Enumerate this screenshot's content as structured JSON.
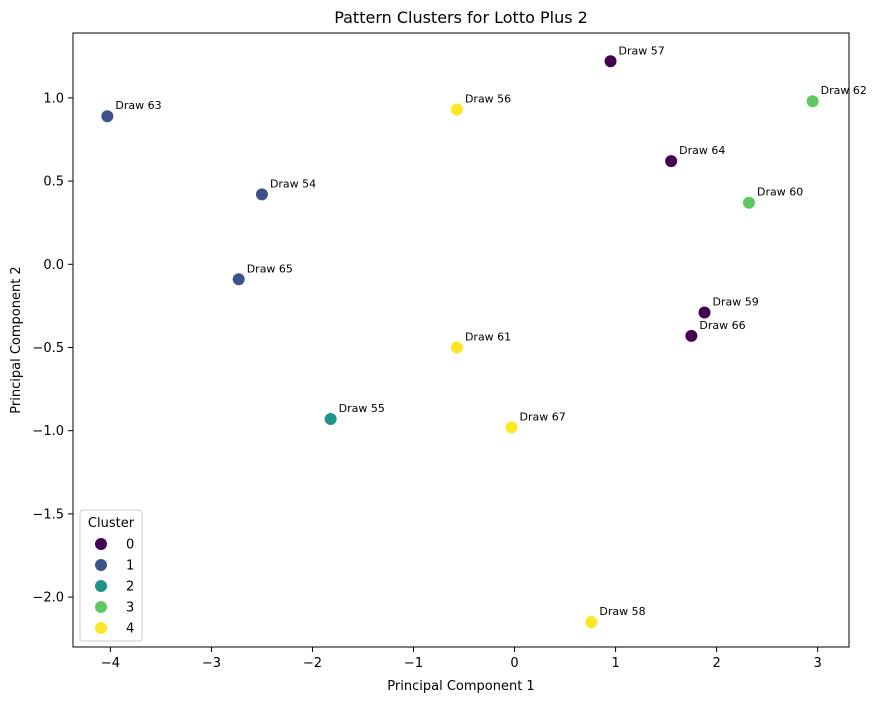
{
  "chart_data": {
    "type": "scatter",
    "title": "Pattern Clusters for Lotto Plus 2",
    "xlabel": "Principal Component 1",
    "ylabel": "Principal Component 2",
    "xlim": [
      -4.37,
      3.31
    ],
    "ylim": [
      -2.3,
      1.39
    ],
    "xticks": [
      -4,
      -3,
      -2,
      -1,
      0,
      1,
      2,
      3
    ],
    "xtick_labels": [
      "−4",
      "−3",
      "−2",
      "−1",
      "0",
      "1",
      "2",
      "3"
    ],
    "yticks": [
      1.0,
      0.5,
      0.0,
      -0.5,
      -1.0,
      -1.5,
      -2.0
    ],
    "ytick_labels": [
      "1.0",
      "0.5",
      "0.0",
      "−0.5",
      "−1.0",
      "−1.5",
      "−2.0"
    ],
    "grid": false,
    "legend": {
      "title": "Cluster",
      "position": "lower-left",
      "entries": [
        {
          "label": "0",
          "color": "#440154"
        },
        {
          "label": "1",
          "color": "#3b528b"
        },
        {
          "label": "2",
          "color": "#21918c"
        },
        {
          "label": "3",
          "color": "#5ec962"
        },
        {
          "label": "4",
          "color": "#fde725"
        }
      ]
    },
    "points": [
      {
        "label": "Draw 57",
        "x": 0.95,
        "y": 1.22,
        "cluster": 0
      },
      {
        "label": "Draw 64",
        "x": 1.55,
        "y": 0.62,
        "cluster": 0
      },
      {
        "label": "Draw 59",
        "x": 1.88,
        "y": -0.29,
        "cluster": 0
      },
      {
        "label": "Draw 66",
        "x": 1.75,
        "y": -0.43,
        "cluster": 0
      },
      {
        "label": "Draw 63",
        "x": -4.03,
        "y": 0.89,
        "cluster": 1
      },
      {
        "label": "Draw 54",
        "x": -2.5,
        "y": 0.42,
        "cluster": 1
      },
      {
        "label": "Draw 65",
        "x": -2.73,
        "y": -0.09,
        "cluster": 1
      },
      {
        "label": "Draw 55",
        "x": -1.82,
        "y": -0.93,
        "cluster": 2
      },
      {
        "label": "Draw 62",
        "x": 2.95,
        "y": 0.98,
        "cluster": 3
      },
      {
        "label": "Draw 60",
        "x": 2.32,
        "y": 0.37,
        "cluster": 3
      },
      {
        "label": "Draw 56",
        "x": -0.57,
        "y": 0.93,
        "cluster": 4
      },
      {
        "label": "Draw 61",
        "x": -0.57,
        "y": -0.5,
        "cluster": 4
      },
      {
        "label": "Draw 67",
        "x": -0.03,
        "y": -0.98,
        "cluster": 4
      },
      {
        "label": "Draw 58",
        "x": 0.76,
        "y": -2.15,
        "cluster": 4
      }
    ]
  }
}
